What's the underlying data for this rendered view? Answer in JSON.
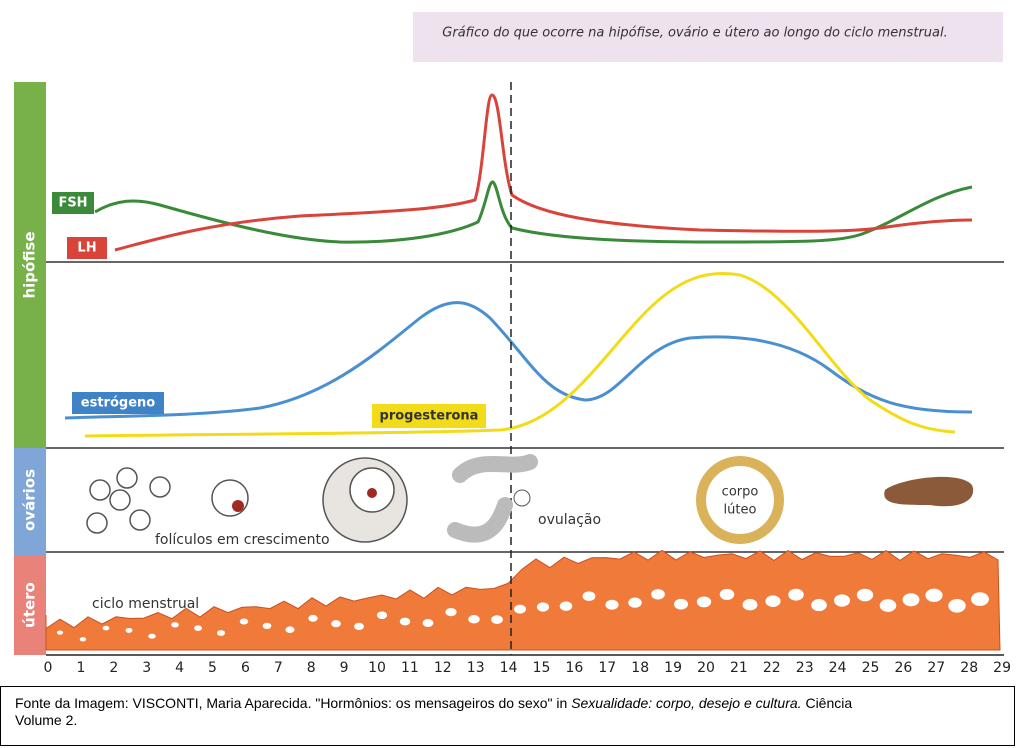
{
  "caption": "Gráfico do que ocorre na hipófise, ovário e útero ao longo do ciclo menstrual.",
  "sections": {
    "hipofise": "hipófise",
    "ovarios": "ovários",
    "utero": "útero"
  },
  "hormones": {
    "fsh": "FSH",
    "lh": "LH",
    "estrogeno": "estrógeno",
    "progesterona": "progesterona"
  },
  "ovary_labels": {
    "foliculos": "folículos em crescimento",
    "ovulacao": "ovulação",
    "corpo_luteo": [
      "corpo",
      "lúteo"
    ]
  },
  "uterus_label": "ciclo menstrual",
  "days": [
    0,
    1,
    2,
    3,
    4,
    5,
    6,
    7,
    8,
    9,
    10,
    11,
    12,
    13,
    14,
    15,
    16,
    17,
    18,
    19,
    20,
    21,
    22,
    23,
    24,
    25,
    26,
    27,
    28,
    29
  ],
  "source": {
    "text": "Fonte da Imagem: VISCONTI, Maria Aparecida. \"Hormônios: os mensageiros do sexo\" in",
    "book": "Sexualidade: corpo, desejo e cultura.",
    "tail": "Ciência",
    "volume": "Volume 2."
  }
}
